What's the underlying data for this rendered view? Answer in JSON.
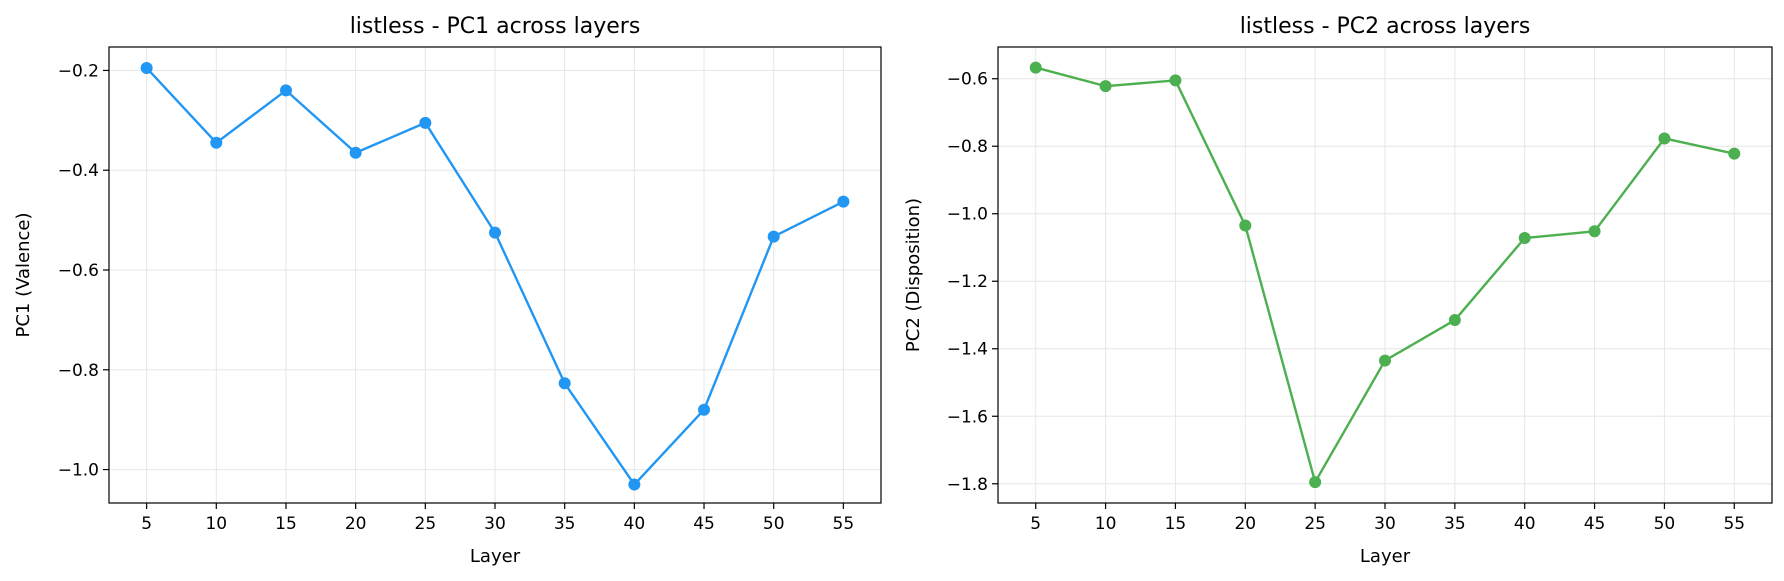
{
  "chart_data": [
    {
      "type": "line",
      "title": "listless - PC1 across layers",
      "xlabel": "Layer",
      "ylabel": "PC1 (Valence)",
      "x": [
        5,
        10,
        15,
        20,
        25,
        30,
        35,
        40,
        45,
        50,
        55
      ],
      "series": [
        {
          "color": "#2196f3",
          "values": [
            -0.195,
            -0.345,
            -0.24,
            -0.365,
            -0.305,
            -0.525,
            -0.827,
            -1.03,
            -0.88,
            -0.533,
            -0.463
          ]
        }
      ],
      "xticks": [
        5,
        10,
        15,
        20,
        25,
        30,
        35,
        40,
        45,
        50,
        55
      ],
      "yticks": [
        -0.2,
        -0.4,
        -0.6,
        -0.8,
        -1.0
      ],
      "ytick_labels": [
        "−0.2",
        "−0.4",
        "−0.6",
        "−0.8",
        "−1.0"
      ],
      "xlim": [
        2.3,
        57.7
      ],
      "ylim": [
        -1.067,
        -0.153
      ],
      "grid": true
    },
    {
      "type": "line",
      "title": "listless - PC2 across layers",
      "xlabel": "Layer",
      "ylabel": "PC2 (Disposition)",
      "x": [
        5,
        10,
        15,
        20,
        25,
        30,
        35,
        40,
        45,
        50,
        55
      ],
      "series": [
        {
          "color": "#4caf50",
          "values": [
            -0.567,
            -0.622,
            -0.605,
            -1.035,
            -1.795,
            -1.435,
            -1.315,
            -1.072,
            -1.052,
            -0.777,
            -0.822
          ]
        }
      ],
      "xticks": [
        5,
        10,
        15,
        20,
        25,
        30,
        35,
        40,
        45,
        50,
        55
      ],
      "yticks": [
        -0.6,
        -0.8,
        -1.0,
        -1.2,
        -1.4,
        -1.6,
        -1.8
      ],
      "ytick_labels": [
        "−0.6",
        "−0.8",
        "−1.0",
        "−1.2",
        "−1.4",
        "−1.6",
        "−1.8"
      ],
      "xlim": [
        2.3,
        57.7
      ],
      "ylim": [
        -1.857,
        -0.506
      ],
      "grid": true
    }
  ]
}
